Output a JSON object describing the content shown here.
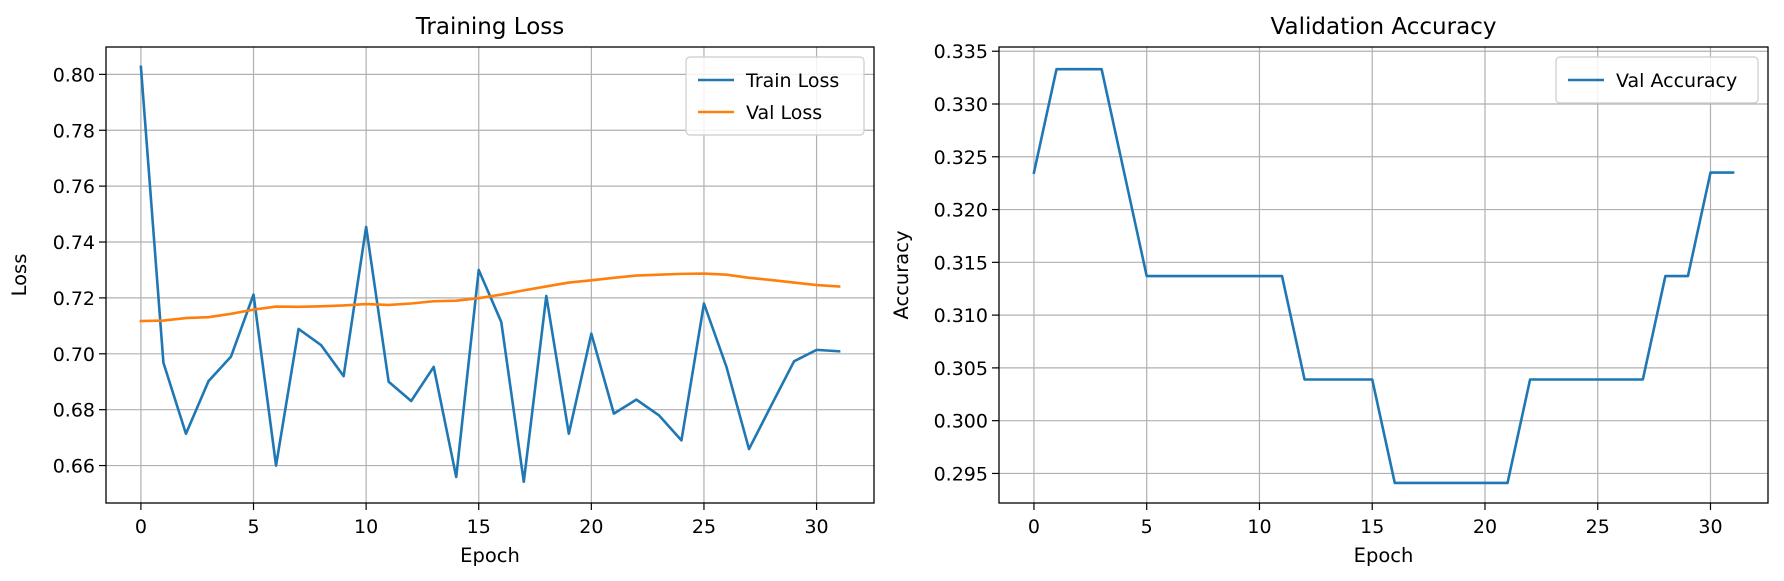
{
  "chart_data": [
    {
      "type": "line",
      "title": "Training Loss",
      "xlabel": "Epoch",
      "ylabel": "Loss",
      "xlim": [
        -1.55,
        32.55
      ],
      "ylim": [
        0.6466,
        0.8098
      ],
      "xticks": [
        0,
        5,
        10,
        15,
        20,
        25,
        30
      ],
      "xtick_labels": [
        "0",
        "5",
        "10",
        "15",
        "20",
        "25",
        "30"
      ],
      "yticks": [
        0.66,
        0.68,
        0.7,
        0.72,
        0.74,
        0.76,
        0.78,
        0.8
      ],
      "ytick_labels": [
        "0.66",
        "0.68",
        "0.70",
        "0.72",
        "0.74",
        "0.76",
        "0.78",
        "0.80"
      ],
      "grid": true,
      "legend_position": "top-right",
      "x": [
        0,
        1,
        2,
        3,
        4,
        5,
        6,
        7,
        8,
        9,
        10,
        11,
        12,
        13,
        14,
        15,
        16,
        17,
        18,
        19,
        20,
        21,
        22,
        23,
        24,
        25,
        26,
        27,
        28,
        29,
        30,
        31
      ],
      "series": [
        {
          "name": "Train Loss",
          "color": "#1f77b4",
          "values": [
            0.8027,
            0.6968,
            0.6714,
            0.6902,
            0.699,
            0.7212,
            0.66,
            0.7089,
            0.7031,
            0.692,
            0.7454,
            0.69,
            0.6831,
            0.6953,
            0.6559,
            0.73,
            0.7114,
            0.6542,
            0.7207,
            0.6714,
            0.7072,
            0.6786,
            0.6836,
            0.678,
            0.669,
            0.718,
            0.6953,
            0.6659,
            0.6817,
            0.6973,
            0.7014,
            0.7009
          ]
        },
        {
          "name": "Val Loss",
          "color": "#ff7f0e",
          "values": [
            0.7117,
            0.7119,
            0.7128,
            0.7131,
            0.7143,
            0.7158,
            0.7169,
            0.7168,
            0.717,
            0.7173,
            0.7178,
            0.7175,
            0.718,
            0.7188,
            0.719,
            0.7199,
            0.7212,
            0.7227,
            0.7241,
            0.7255,
            0.7263,
            0.7272,
            0.728,
            0.7283,
            0.7286,
            0.7287,
            0.7283,
            0.7272,
            0.7264,
            0.7255,
            0.7246,
            0.7241
          ]
        }
      ]
    },
    {
      "type": "line",
      "title": "Validation Accuracy",
      "xlabel": "Epoch",
      "ylabel": "Accuracy",
      "xlim": [
        -1.55,
        32.55
      ],
      "ylim": [
        0.2922,
        0.3354
      ],
      "xticks": [
        0,
        5,
        10,
        15,
        20,
        25,
        30
      ],
      "xtick_labels": [
        "0",
        "5",
        "10",
        "15",
        "20",
        "25",
        "30"
      ],
      "yticks": [
        0.295,
        0.3,
        0.305,
        0.31,
        0.315,
        0.32,
        0.325,
        0.33,
        0.335
      ],
      "ytick_labels": [
        "0.295",
        "0.300",
        "0.305",
        "0.310",
        "0.315",
        "0.320",
        "0.325",
        "0.330",
        "0.335"
      ],
      "grid": true,
      "legend_position": "top-right",
      "x": [
        0,
        1,
        2,
        3,
        4,
        5,
        6,
        7,
        8,
        9,
        10,
        11,
        12,
        13,
        14,
        15,
        16,
        17,
        18,
        19,
        20,
        21,
        22,
        23,
        24,
        25,
        26,
        27,
        28,
        29,
        30,
        31
      ],
      "series": [
        {
          "name": "Val Accuracy",
          "color": "#1f77b4",
          "values": [
            0.3235,
            0.3333,
            0.3333,
            0.3333,
            0.3235,
            0.3137,
            0.3137,
            0.3137,
            0.3137,
            0.3137,
            0.3137,
            0.3137,
            0.3039,
            0.3039,
            0.3039,
            0.3039,
            0.2941,
            0.2941,
            0.2941,
            0.2941,
            0.2941,
            0.2941,
            0.3039,
            0.3039,
            0.3039,
            0.3039,
            0.3039,
            0.3039,
            0.3137,
            0.3137,
            0.3235,
            0.3235
          ]
        }
      ]
    }
  ]
}
